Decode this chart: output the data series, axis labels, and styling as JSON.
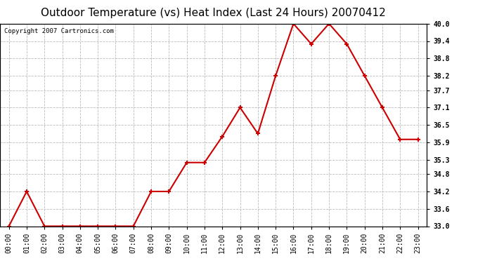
{
  "title": "Outdoor Temperature (vs) Heat Index (Last 24 Hours) 20070412",
  "copyright": "Copyright 2007 Cartronics.com",
  "x_labels": [
    "00:00",
    "01:00",
    "02:00",
    "03:00",
    "04:00",
    "05:00",
    "06:00",
    "07:00",
    "08:00",
    "09:00",
    "10:00",
    "11:00",
    "12:00",
    "13:00",
    "14:00",
    "15:00",
    "16:00",
    "17:00",
    "18:00",
    "19:00",
    "20:00",
    "21:00",
    "22:00",
    "23:00"
  ],
  "y_values": [
    33.0,
    34.2,
    33.0,
    33.0,
    33.0,
    33.0,
    33.0,
    33.0,
    34.2,
    34.2,
    35.2,
    35.2,
    36.1,
    37.1,
    36.2,
    38.2,
    40.0,
    39.3,
    40.0,
    39.3,
    38.2,
    37.1,
    36.0,
    36.0
  ],
  "line_color": "#cc0000",
  "marker": "+",
  "marker_size": 5,
  "marker_linewidth": 1.5,
  "line_width": 1.5,
  "ylim_min": 33.0,
  "ylim_max": 40.0,
  "yticks": [
    33.0,
    33.6,
    34.2,
    34.8,
    35.3,
    35.9,
    36.5,
    37.1,
    37.7,
    38.2,
    38.8,
    39.4,
    40.0
  ],
  "ytick_labels": [
    "33.0",
    "33.6",
    "34.2",
    "34.8",
    "35.3",
    "35.9",
    "36.5",
    "37.1",
    "37.7",
    "38.2",
    "38.8",
    "39.4",
    "40.0"
  ],
  "bg_color": "#ffffff",
  "plot_bg_color": "#ffffff",
  "grid_color": "#bbbbbb",
  "title_fontsize": 11,
  "tick_fontsize": 7,
  "copyright_fontsize": 6.5
}
